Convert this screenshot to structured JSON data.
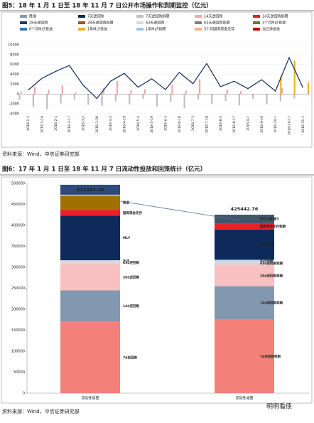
{
  "chart_data": [
    {
      "type": "bar",
      "title": "图5：18 年 1 月 1 日至 18 年 11 月 7 日公开市场操作和到期监控（亿元）",
      "source": "资料来源：Wind，中信证券研究部",
      "categories": [
        "2018-1-1",
        "2018-1-16",
        "2018-2-1",
        "2018-2-17",
        "2018-3-5",
        "2018-3-20",
        "2018-4-4",
        "2018-4-19",
        "2018-5-4",
        "2018-5-19",
        "2018-6-3",
        "2018-6-18",
        "2018-7-3",
        "2018-7-18",
        "2018-8-2",
        "2018-8-17",
        "2018-9-1",
        "2018-9-16",
        "2018-10-1",
        "2018-10-17",
        "2018-11-1"
      ],
      "ylim": [
        -4000,
        10000
      ],
      "yticks": [
        -4000,
        -2000,
        0,
        2000,
        4000,
        6000,
        8000,
        10000
      ],
      "series": [
        {
          "name": "降准",
          "color": "#8497b0",
          "values": [
            null,
            null,
            null,
            null,
            null,
            null,
            null,
            null,
            null,
            null,
            null,
            null,
            null,
            null,
            null,
            null,
            null,
            null,
            null,
            null,
            null
          ]
        },
        {
          "name": "7天逆回购",
          "color": "#0d2a5a",
          "type": "line",
          "values": [
            800,
            3200,
            4600,
            5800,
            1800,
            -900,
            2600,
            4200,
            1400,
            3100,
            900,
            4400,
            2100,
            6200,
            1500,
            2600,
            1100,
            2900,
            600,
            7400,
            1300
          ]
        },
        {
          "name": "7天逆回购到期",
          "color": "#bfbfbf",
          "values": [
            -1200,
            -2600,
            -3100,
            -1900,
            -1100,
            -2200,
            -2400,
            -1500,
            -2100,
            -1000,
            -2500,
            -1600,
            -2900,
            -1100,
            -2000,
            -1400,
            -2300,
            -1000,
            -2100,
            -1500,
            -900
          ]
        },
        {
          "name": "14天逆回购",
          "color": "#f4a6a6",
          "values": [
            500,
            1400,
            900,
            1800,
            300,
            null,
            1200,
            2600,
            800,
            1000,
            null,
            1900,
            700,
            3000,
            null,
            900,
            600,
            null,
            null,
            1200,
            null
          ]
        },
        {
          "name": "14天逆回购到期",
          "color": "#e8202a",
          "values": [
            null,
            null,
            null,
            null,
            null,
            null,
            null,
            null,
            null,
            null,
            null,
            null,
            null,
            null,
            null,
            null,
            null,
            null,
            null,
            null,
            null
          ]
        },
        {
          "name": "28天逆回购",
          "color": "#1f3864",
          "values": [
            null,
            null,
            null,
            null,
            null,
            null,
            null,
            null,
            null,
            null,
            null,
            null,
            null,
            null,
            null,
            null,
            null,
            null,
            null,
            null,
            null
          ]
        },
        {
          "name": "28天逆回购到期",
          "color": "#a0522d",
          "values": [
            null,
            null,
            null,
            null,
            null,
            null,
            null,
            null,
            null,
            null,
            null,
            null,
            null,
            null,
            null,
            null,
            null,
            null,
            null,
            null,
            null
          ]
        },
        {
          "name": "63天逆回购",
          "color": "#d9d9d9",
          "values": [
            null,
            null,
            null,
            null,
            null,
            null,
            null,
            null,
            null,
            null,
            null,
            null,
            null,
            null,
            null,
            null,
            null,
            null,
            null,
            null,
            null
          ]
        },
        {
          "name": "63天逆回购到期",
          "color": "#7f7f7f",
          "values": [
            null,
            null,
            null,
            null,
            null,
            null,
            null,
            null,
            null,
            null,
            null,
            null,
            null,
            null,
            null,
            null,
            null,
            null,
            null,
            null,
            null
          ]
        },
        {
          "name": "3个月MLF投放",
          "color": "#548235",
          "values": [
            null,
            null,
            null,
            null,
            null,
            null,
            null,
            null,
            null,
            null,
            null,
            null,
            null,
            null,
            null,
            null,
            null,
            null,
            null,
            null,
            null
          ]
        },
        {
          "name": "6个月MLF投放",
          "color": "#2e75b6",
          "values": [
            null,
            null,
            null,
            null,
            null,
            null,
            null,
            null,
            null,
            null,
            null,
            null,
            null,
            null,
            null,
            null,
            null,
            null,
            null,
            null,
            null
          ]
        },
        {
          "name": "1年MLF投放",
          "color": "#e6b422",
          "values": [
            null,
            null,
            null,
            null,
            null,
            null,
            null,
            null,
            null,
            null,
            null,
            null,
            null,
            null,
            null,
            null,
            null,
            null,
            3600,
            6800,
            2400
          ]
        },
        {
          "name": "1年MLF到期",
          "color": "#9dc3e6",
          "values": [
            null,
            null,
            null,
            null,
            null,
            null,
            null,
            null,
            null,
            null,
            null,
            null,
            null,
            null,
            null,
            null,
            null,
            null,
            null,
            null,
            null
          ]
        },
        {
          "name": "3个月国库现金定存",
          "color": "#f4b183",
          "values": [
            null,
            null,
            null,
            null,
            null,
            null,
            null,
            null,
            null,
            null,
            null,
            null,
            null,
            null,
            null,
            null,
            null,
            null,
            null,
            null,
            null
          ]
        },
        {
          "name": "当日净投放",
          "color": "#c00000",
          "values": [
            null,
            null,
            null,
            null,
            null,
            null,
            null,
            null,
            null,
            null,
            null,
            null,
            null,
            null,
            null,
            null,
            null,
            null,
            null,
            null,
            null
          ]
        }
      ]
    },
    {
      "type": "stacked",
      "title": "图6：17 年 1 月 1 日至 18 年 11 月 7 日流动性投放和回笼统计（亿元）",
      "source": "资料来源：Wind，中信证券研究部",
      "categories": [
        "流动性增量",
        "流动性减量"
      ],
      "totals": [
        471352.29,
        425442.76
      ],
      "ylim": [
        0,
        500000
      ],
      "yticks": [
        0,
        50000,
        100000,
        150000,
        200000,
        250000,
        300000,
        350000,
        400000,
        450000,
        500000
      ],
      "series": [
        {
          "name": "7d逆回购",
          "color": "#f4807a",
          "values": [
            170000,
            null
          ]
        },
        {
          "name": "7d逆回购到期",
          "color": "#f4807a",
          "values": [
            null,
            175000
          ]
        },
        {
          "name": "14d逆回购",
          "color": "#8497b0",
          "values": [
            75000,
            null
          ]
        },
        {
          "name": "14d逆回购到期",
          "color": "#8497b0",
          "values": [
            null,
            80000
          ]
        },
        {
          "name": "28d逆回购",
          "color": "#f8c0c0",
          "values": [
            62000,
            null
          ]
        },
        {
          "name": "28d逆回购到期",
          "color": "#f8c0c0",
          "values": [
            null,
            50000
          ]
        },
        {
          "name": "63d逆回购",
          "color": "#e3d3d3",
          "values": [
            8000,
            null
          ]
        },
        {
          "name": "63d逆回购到期",
          "color": "#e3d3d3",
          "values": [
            null,
            8000
          ]
        },
        {
          "name": "SLF",
          "color": "#bdd7ee",
          "values": [
            2000,
            null
          ]
        },
        {
          "name": "SLF到期",
          "color": "#bdd7ee",
          "values": [
            null,
            5000
          ]
        },
        {
          "name": "MLF",
          "color": "#0d2a5a",
          "values": [
            106000,
            null
          ]
        },
        {
          "name": "MLF到期",
          "color": "#0d2a5a",
          "values": [
            null,
            72000
          ]
        },
        {
          "name": "国库现金定存",
          "color": "#e8202a",
          "values": [
            14000,
            null
          ]
        },
        {
          "name": "国库现金定存到期",
          "color": "#e8202a",
          "values": [
            null,
            15000
          ]
        },
        {
          "name": "降准",
          "color": "#a07000",
          "values": [
            34352.29,
            null
          ]
        },
        {
          "name": "外汇占款减少",
          "color": "#44546a",
          "values": [
            null,
            20442.76
          ]
        }
      ]
    }
  ],
  "watermark": "明明看债"
}
